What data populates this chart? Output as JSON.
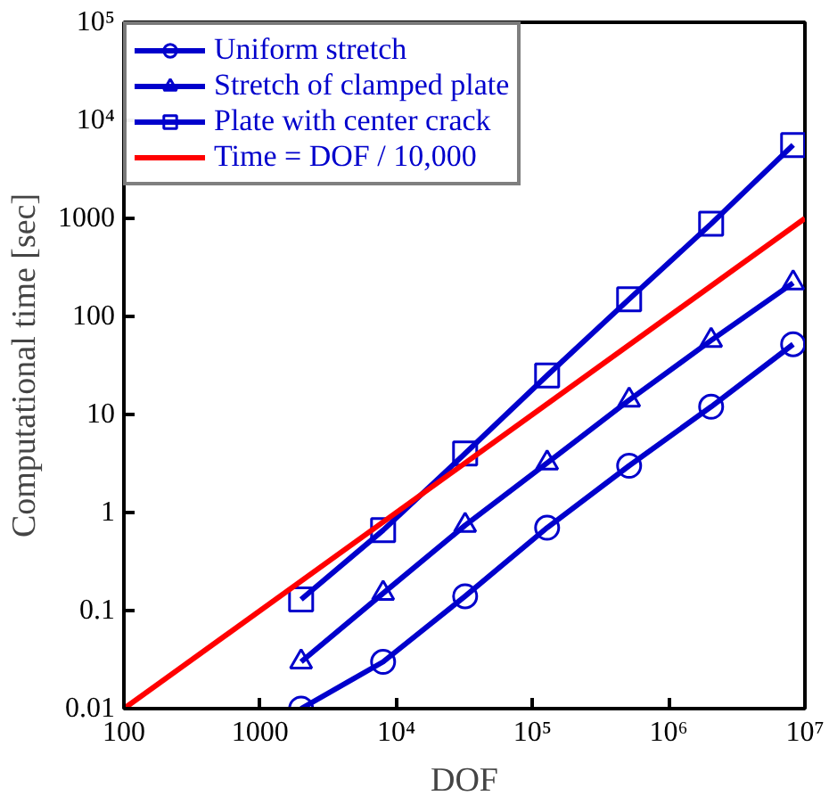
{
  "chart_data": {
    "type": "line",
    "xlabel": "DOF",
    "ylabel": "Computational time [sec]",
    "log": "xy",
    "grid": false,
    "legend": "top left",
    "line_style": "solid",
    "x": [
      2000,
      8000,
      32000,
      128000,
      512000,
      2048000,
      8192000
    ],
    "xlim": [
      100,
      10000000
    ],
    "ylim": [
      0.01,
      100000
    ],
    "xticks": [
      100,
      1000,
      {
        "value": 10000,
        "label": "10⁴"
      },
      {
        "value": 100000,
        "label": "10⁵"
      },
      {
        "value": 1000000,
        "label": "10⁶"
      },
      {
        "value": 10000000,
        "label": "10⁷"
      }
    ],
    "yticks": [
      0.01,
      0.1,
      1,
      10,
      100,
      1000,
      {
        "value": 10000,
        "label": "10⁴"
      },
      {
        "value": 100000,
        "label": "10⁵"
      }
    ],
    "series": [
      {
        "name": "Uniform stretch",
        "color": "#0000cc",
        "marker": "circle",
        "values": [
          0.01,
          0.03,
          0.14,
          0.7,
          3.0,
          12,
          52
        ]
      },
      {
        "name": "Stretch of clamped plate",
        "color": "#0000cc",
        "marker": "triangle",
        "values": [
          0.03,
          0.15,
          0.74,
          3.2,
          14,
          57,
          220
        ]
      },
      {
        "name": "Plate with center crack",
        "color": "#0000cc",
        "marker": "square",
        "values": [
          0.13,
          0.66,
          4.0,
          25,
          150,
          880,
          5600
        ]
      },
      {
        "name": "Time = DOF / 10,000",
        "color": "#ff0000",
        "marker": "none",
        "x": [
          100,
          10000000
        ],
        "values": [
          0.01,
          1000
        ]
      }
    ]
  }
}
